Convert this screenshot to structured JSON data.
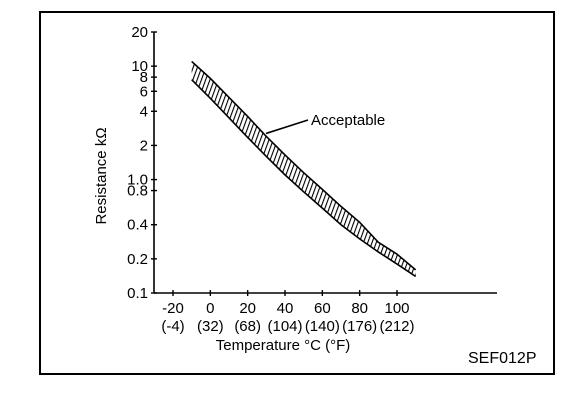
{
  "chart_data": {
    "type": "area",
    "title": "",
    "xlabel": "Temperature °C (°F)",
    "ylabel": "Resistance kΩ",
    "y_scale": "log",
    "x_ticks": [
      {
        "value": -20,
        "label": "-20",
        "sublabel": "(-4)"
      },
      {
        "value": 0,
        "label": "0",
        "sublabel": "(32)"
      },
      {
        "value": 20,
        "label": "20",
        "sublabel": "(68)"
      },
      {
        "value": 40,
        "label": "40",
        "sublabel": "(104)"
      },
      {
        "value": 60,
        "label": "60",
        "sublabel": "(140)"
      },
      {
        "value": 80,
        "label": "80",
        "sublabel": "(176)"
      },
      {
        "value": 100,
        "label": "100",
        "sublabel": "(212)"
      }
    ],
    "y_ticks": [
      {
        "value": 20,
        "label": "20"
      },
      {
        "value": 10,
        "label": "10"
      },
      {
        "value": 8,
        "label": "8"
      },
      {
        "value": 6,
        "label": "6"
      },
      {
        "value": 4,
        "label": "4"
      },
      {
        "value": 2,
        "label": "2"
      },
      {
        "value": 1.0,
        "label": "1.0"
      },
      {
        "value": 0.8,
        "label": "0.8"
      },
      {
        "value": 0.4,
        "label": "0.4"
      },
      {
        "value": 0.2,
        "label": "0.2"
      },
      {
        "value": 0.1,
        "label": "0.1"
      }
    ],
    "xlim": [
      -28,
      127
    ],
    "ylim": [
      0.1,
      20
    ],
    "series": [
      {
        "name": "Acceptable",
        "x": [
          -10,
          0,
          10,
          20,
          30,
          40,
          50,
          60,
          70,
          80,
          90,
          100,
          110
        ],
        "upper": [
          11,
          7.8,
          5.3,
          3.6,
          2.4,
          1.65,
          1.15,
          0.82,
          0.58,
          0.42,
          0.28,
          0.22,
          0.16
        ],
        "lower": [
          7.6,
          5.2,
          3.5,
          2.35,
          1.6,
          1.1,
          0.78,
          0.56,
          0.4,
          0.3,
          0.23,
          0.18,
          0.14
        ]
      }
    ],
    "annotation": {
      "text": "Acceptable",
      "x": 32,
      "y": 2.4
    }
  },
  "figure_id": "SEF012P"
}
